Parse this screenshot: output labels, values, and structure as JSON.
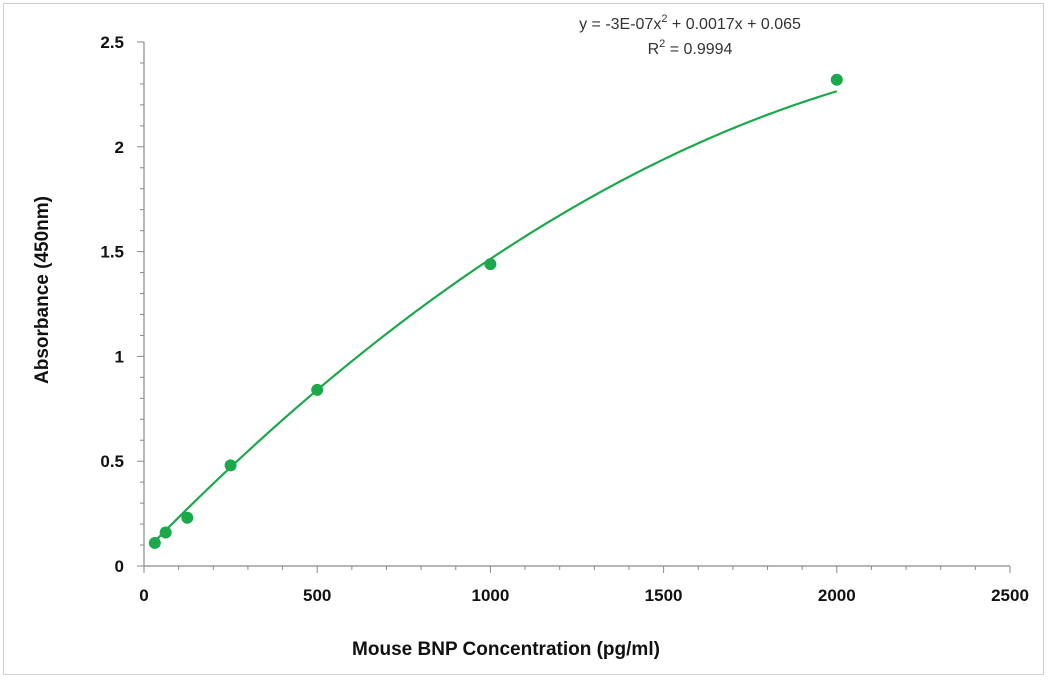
{
  "chart_data": {
    "type": "scatter",
    "title": "",
    "xlabel": "Mouse BNP Concentration (pg/ml)",
    "ylabel": "Absorbance (450nm)",
    "xlim": [
      0,
      2500
    ],
    "ylim": [
      0,
      2.5
    ],
    "x_ticks": [
      "0",
      "500",
      "1000",
      "1500",
      "2000",
      "2500"
    ],
    "y_ticks": [
      "0",
      "0.5",
      "1",
      "1.5",
      "2",
      "2.5"
    ],
    "grid": false,
    "legend": "none",
    "marker_color": "#1aa84a",
    "series": [
      {
        "x": [
          31.25,
          62.5,
          125,
          250,
          500,
          1000,
          2000
        ],
        "y": [
          0.11,
          0.16,
          0.23,
          0.48,
          0.84,
          1.44,
          2.32
        ]
      }
    ],
    "trendline": {
      "type": "polynomial",
      "coefficients": [
        -3e-07,
        0.0017,
        0.065
      ],
      "x_range": [
        31.25,
        2000
      ],
      "color": "#1aa84a"
    },
    "annotations": {
      "equation_prefix": "y = -3E-07x",
      "equation_suffix": " + 0.0017x + 0.065",
      "r2_prefix": "R",
      "r2_suffix": " = 0.9994",
      "superscript": "2"
    }
  }
}
